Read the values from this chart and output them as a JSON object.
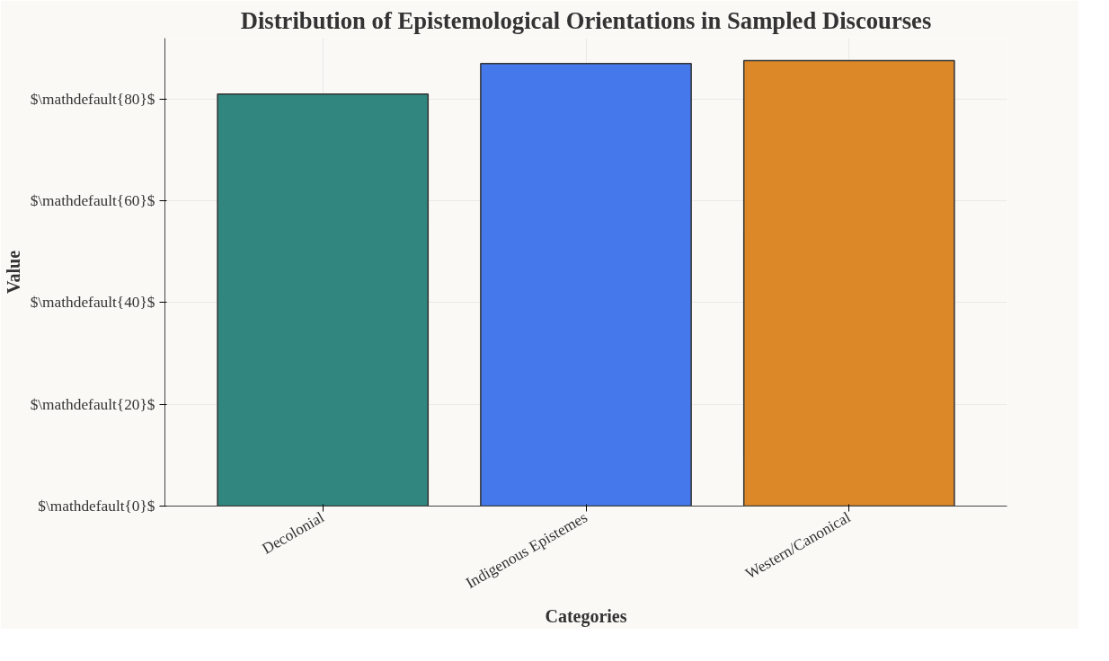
{
  "chart_data": {
    "type": "bar",
    "title": "Distribution of Epistemological Orientations in Sampled Discourses",
    "xlabel": "Categories",
    "ylabel": "Value",
    "categories": [
      "Decolonial",
      "Indigenous Epistemes",
      "Western/Canonical"
    ],
    "values": [
      81.0,
      87.0,
      87.6
    ],
    "colors": [
      "#31877f",
      "#4478eb",
      "#dc8829"
    ],
    "ylim": [
      0,
      92
    ],
    "yticks": [
      {
        "value": 0,
        "label": "$\\mathdefault{0}$"
      },
      {
        "value": 20,
        "label": "$\\mathdefault{20}$"
      },
      {
        "value": 40,
        "label": "$\\mathdefault{40}$"
      },
      {
        "value": 60,
        "label": "$\\mathdefault{60}$"
      },
      {
        "value": 80,
        "label": "$\\mathdefault{80}$"
      }
    ],
    "grid": true
  }
}
